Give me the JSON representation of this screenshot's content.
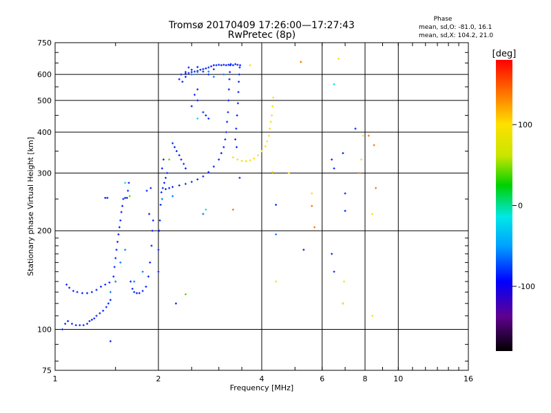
{
  "chart_data": {
    "type": "scatter",
    "title": "Tromsø 20170409 17:26:00—17:27:43",
    "subtitle": "RwPretec (8p)",
    "xlabel": "Frequency [MHz]",
    "ylabel": "Stationary phase Virtual Height [km]",
    "xscale": "log2",
    "yscale": "log",
    "xlim": [
      1,
      16
    ],
    "ylim": [
      75,
      750
    ],
    "grid": true,
    "xticks": [
      {
        "value": 1,
        "label": "1"
      },
      {
        "value": 2,
        "label": "2"
      },
      {
        "value": 4,
        "label": "4"
      },
      {
        "value": 6,
        "label": "6"
      },
      {
        "value": 8,
        "label": "8"
      },
      {
        "value": 10,
        "label": "10"
      },
      {
        "value": 16,
        "label": "16"
      }
    ],
    "yticks": [
      {
        "value": 75,
        "label": "75"
      },
      {
        "value": 100,
        "label": "100"
      },
      {
        "value": 200,
        "label": "200"
      },
      {
        "value": 300,
        "label": "300"
      },
      {
        "value": 400,
        "label": "400"
      },
      {
        "value": 500,
        "label": "500"
      },
      {
        "value": 600,
        "label": "600"
      },
      {
        "value": 750,
        "label": "750"
      }
    ],
    "phase_stats": {
      "heading": "Phase",
      "line_o": "mean, sd,O: -81.0, 16.1",
      "line_x": "mean, sd,X: 104.2, 21.0"
    },
    "colorbar": {
      "label": "[deg]",
      "range": [
        -180,
        180
      ],
      "ticks": [
        {
          "value": 100,
          "label": "100"
        },
        {
          "value": 0,
          "label": "0"
        },
        {
          "value": -100,
          "label": "-100"
        }
      ]
    },
    "series": [
      {
        "phase": -85,
        "points": [
          [
            1.05,
            100
          ],
          [
            1.07,
            104
          ],
          [
            1.09,
            106
          ],
          [
            1.12,
            104
          ],
          [
            1.15,
            103
          ],
          [
            1.18,
            103
          ],
          [
            1.21,
            103
          ],
          [
            1.24,
            104
          ],
          [
            1.26,
            106
          ],
          [
            1.28,
            107
          ],
          [
            1.3,
            108
          ],
          [
            1.32,
            110
          ],
          [
            1.35,
            112
          ],
          [
            1.38,
            114
          ],
          [
            1.41,
            117
          ],
          [
            1.43,
            120
          ],
          [
            1.45,
            123
          ],
          [
            1.08,
            137
          ],
          [
            1.1,
            134
          ],
          [
            1.13,
            131
          ],
          [
            1.16,
            130
          ],
          [
            1.2,
            129
          ],
          [
            1.24,
            129
          ],
          [
            1.28,
            130
          ],
          [
            1.32,
            132
          ],
          [
            1.36,
            135
          ],
          [
            1.4,
            137
          ],
          [
            1.44,
            139
          ],
          [
            1.48,
            145
          ],
          [
            1.49,
            155
          ],
          [
            1.5,
            165
          ],
          [
            1.51,
            175
          ],
          [
            1.52,
            185
          ],
          [
            1.53,
            195
          ],
          [
            1.54,
            205
          ],
          [
            1.55,
            215
          ],
          [
            1.56,
            228
          ],
          [
            1.57,
            238
          ],
          [
            1.58,
            250
          ],
          [
            1.6,
            252
          ],
          [
            1.62,
            252
          ],
          [
            1.63,
            265
          ],
          [
            1.64,
            280
          ],
          [
            1.4,
            252
          ],
          [
            1.42,
            252
          ],
          [
            1.66,
            140
          ],
          [
            1.68,
            133
          ],
          [
            1.7,
            130
          ],
          [
            1.73,
            129
          ],
          [
            1.76,
            129
          ],
          [
            1.8,
            131
          ],
          [
            1.84,
            135
          ],
          [
            1.87,
            145
          ],
          [
            1.89,
            160
          ],
          [
            1.91,
            180
          ],
          [
            1.92,
            200
          ],
          [
            1.93,
            215
          ],
          [
            1.88,
            225
          ],
          [
            1.9,
            270
          ],
          [
            1.85,
            265
          ],
          [
            2.0,
            150
          ],
          [
            2.0,
            175
          ],
          [
            2.01,
            200
          ],
          [
            2.02,
            215
          ],
          [
            2.03,
            240
          ],
          [
            2.04,
            262
          ],
          [
            2.06,
            270
          ],
          [
            2.08,
            280
          ],
          [
            2.1,
            290
          ],
          [
            2.12,
            300
          ],
          [
            2.05,
            310
          ],
          [
            2.07,
            330
          ],
          [
            2.1,
            268
          ],
          [
            2.15,
            270
          ],
          [
            2.2,
            272
          ],
          [
            2.3,
            275
          ],
          [
            2.4,
            278
          ],
          [
            2.5,
            282
          ],
          [
            2.6,
            287
          ],
          [
            2.7,
            293
          ],
          [
            2.8,
            302
          ],
          [
            2.9,
            314
          ],
          [
            3.0,
            330
          ],
          [
            3.05,
            345
          ],
          [
            3.1,
            360
          ],
          [
            3.13,
            380
          ],
          [
            3.15,
            400
          ],
          [
            3.17,
            430
          ],
          [
            3.19,
            460
          ],
          [
            3.2,
            500
          ],
          [
            3.21,
            540
          ],
          [
            3.22,
            580
          ],
          [
            3.23,
            610
          ],
          [
            3.24,
            640
          ],
          [
            2.2,
            370
          ],
          [
            2.23,
            360
          ],
          [
            2.26,
            350
          ],
          [
            2.3,
            340
          ],
          [
            2.33,
            330
          ],
          [
            2.37,
            320
          ],
          [
            2.4,
            310
          ],
          [
            2.33,
            600
          ],
          [
            2.4,
            603
          ],
          [
            2.45,
            606
          ],
          [
            2.5,
            610
          ],
          [
            2.55,
            612
          ],
          [
            2.6,
            615
          ],
          [
            2.65,
            620
          ],
          [
            2.7,
            623
          ],
          [
            2.75,
            626
          ],
          [
            2.8,
            630
          ],
          [
            2.85,
            635
          ],
          [
            2.9,
            640
          ],
          [
            2.95,
            640
          ],
          [
            3.0,
            642
          ],
          [
            3.05,
            640
          ],
          [
            3.1,
            642
          ],
          [
            3.15,
            640
          ],
          [
            3.2,
            642
          ],
          [
            3.25,
            645
          ],
          [
            3.3,
            640
          ],
          [
            3.35,
            645
          ],
          [
            3.4,
            642
          ],
          [
            2.4,
            610
          ],
          [
            2.45,
            630
          ],
          [
            2.5,
            620
          ],
          [
            2.6,
            632
          ],
          [
            2.7,
            612
          ],
          [
            2.8,
            600
          ],
          [
            2.9,
            622
          ],
          [
            2.3,
            580
          ],
          [
            2.35,
            570
          ],
          [
            2.4,
            590
          ],
          [
            2.55,
            520
          ],
          [
            2.6,
            540
          ],
          [
            2.7,
            460
          ],
          [
            2.75,
            450
          ],
          [
            2.8,
            440
          ],
          [
            2.5,
            480
          ],
          [
            2.6,
            500
          ],
          [
            3.35,
            380
          ],
          [
            3.37,
            410
          ],
          [
            3.39,
            450
          ],
          [
            3.41,
            490
          ],
          [
            3.42,
            530
          ],
          [
            3.43,
            570
          ],
          [
            3.44,
            600
          ],
          [
            3.45,
            630
          ],
          [
            3.46,
            640
          ],
          [
            3.38,
            360
          ],
          [
            3.45,
            290
          ],
          [
            2.25,
            120
          ],
          [
            5.3,
            175
          ],
          [
            6.4,
            170
          ],
          [
            6.5,
            150
          ],
          [
            7.5,
            410
          ],
          [
            6.5,
            310
          ],
          [
            6.4,
            330
          ],
          [
            7.0,
            230
          ],
          [
            7.0,
            260
          ],
          [
            6.9,
            345
          ],
          [
            4.4,
            240
          ],
          [
            1.45,
            92
          ]
        ]
      },
      {
        "phase": -60,
        "points": [
          [
            1.45,
            130
          ],
          [
            1.5,
            140
          ],
          [
            1.55,
            160
          ],
          [
            1.6,
            175
          ],
          [
            1.7,
            140
          ],
          [
            1.8,
            150
          ],
          [
            2.05,
            250
          ],
          [
            2.2,
            255
          ],
          [
            2.5,
            600
          ],
          [
            2.6,
            610
          ],
          [
            2.8,
            612
          ],
          [
            2.9,
            590
          ],
          [
            3.1,
            600
          ],
          [
            4.4,
            195
          ],
          [
            6.9,
            120
          ],
          [
            2.7,
            225
          ]
        ]
      },
      {
        "phase": -20,
        "points": [
          [
            1.6,
            280
          ],
          [
            6.5,
            560
          ],
          [
            2.75,
            232
          ],
          [
            2.6,
            440
          ]
        ]
      },
      {
        "phase": 40,
        "points": [
          [
            1.65,
            255
          ],
          [
            2.4,
            128
          ],
          [
            2.15,
            330
          ]
        ]
      },
      {
        "phase": 95,
        "points": [
          [
            3.3,
            335
          ],
          [
            3.4,
            330
          ],
          [
            3.5,
            327
          ],
          [
            3.6,
            326
          ],
          [
            3.7,
            328
          ],
          [
            3.8,
            332
          ],
          [
            3.9,
            340
          ],
          [
            4.0,
            350
          ],
          [
            4.1,
            362
          ],
          [
            4.15,
            375
          ],
          [
            4.2,
            390
          ],
          [
            4.22,
            410
          ],
          [
            4.25,
            430
          ],
          [
            4.28,
            450
          ],
          [
            4.3,
            480
          ],
          [
            4.32,
            510
          ],
          [
            3.7,
            640
          ],
          [
            4.3,
            302
          ],
          [
            4.8,
            300
          ],
          [
            4.4,
            140
          ],
          [
            5.6,
            260
          ],
          [
            6.9,
            120
          ],
          [
            6.95,
            140
          ],
          [
            8.4,
            225
          ],
          [
            7.8,
            330
          ],
          [
            5.2,
            655
          ],
          [
            6.7,
            670
          ],
          [
            8.4,
            110
          ],
          [
            7.9,
            390
          ]
        ]
      },
      {
        "phase": 140,
        "points": [
          [
            3.3,
            232
          ],
          [
            5.6,
            238
          ],
          [
            5.7,
            205
          ],
          [
            8.5,
            365
          ],
          [
            8.2,
            390
          ],
          [
            8.6,
            270
          ],
          [
            7.7,
            300
          ],
          [
            5.2,
            655
          ]
        ]
      }
    ]
  }
}
